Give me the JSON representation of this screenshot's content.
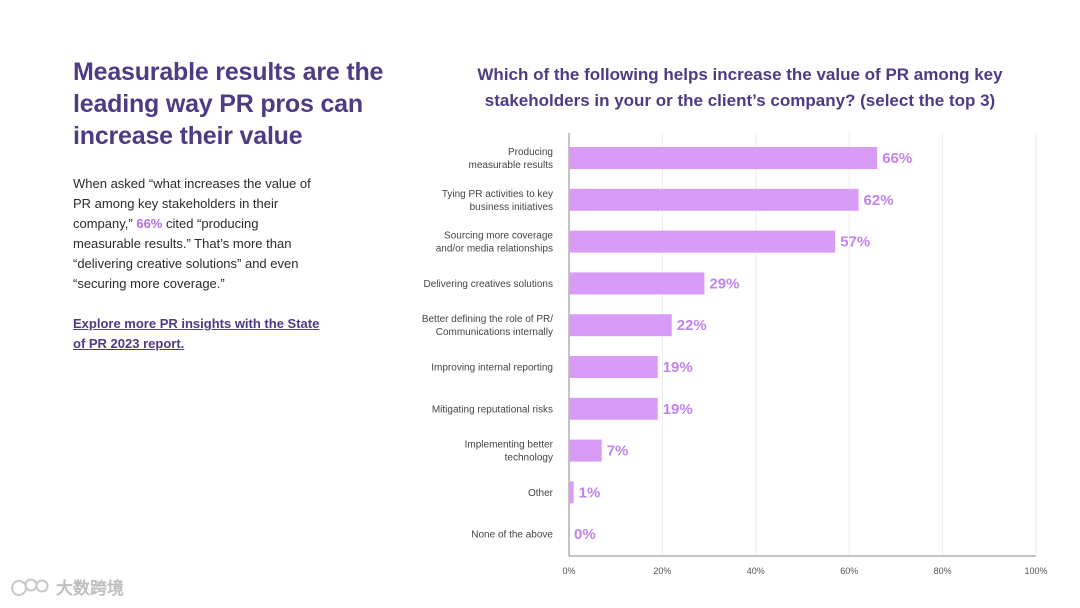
{
  "left": {
    "headline": "Measurable results are the leading way PR pros can increase their value",
    "body_before": "When asked “what increases the value of PR among key stakeholders in their company,” ",
    "body_highlight": "66%",
    "body_after": " cited “producing measurable results.” That’s more than “delivering creative solutions” and even “securing more coverage.”",
    "link_text": "Explore more PR insights with the State of PR 2023 report."
  },
  "watermark": {
    "text": "大数跨境"
  },
  "chart_data": {
    "type": "bar",
    "orientation": "horizontal",
    "title": "Which of the following helps increase the value of PR among key stakeholders in your or the client’s company? (select the top 3)",
    "categories": [
      [
        "Producing",
        "measurable results"
      ],
      [
        "Tying PR activities to key",
        "business initiatives"
      ],
      [
        "Sourcing more coverage",
        "and/or media relationships"
      ],
      [
        "Delivering creatives solutions"
      ],
      [
        "Better defining the role of PR/",
        "Communications internally"
      ],
      [
        "Improving internal reporting"
      ],
      [
        "Mitigating reputational risks"
      ],
      [
        "Implementing better",
        "technology"
      ],
      [
        "Other"
      ],
      [
        "None of the above"
      ]
    ],
    "values": [
      66,
      62,
      57,
      29,
      22,
      19,
      19,
      7,
      1,
      0
    ],
    "value_labels": [
      "66%",
      "62%",
      "57%",
      "29%",
      "22%",
      "19%",
      "19%",
      "7%",
      "1%",
      "0%"
    ],
    "xlim": [
      0,
      100
    ],
    "ticks": [
      0,
      20,
      40,
      60,
      80,
      100
    ],
    "tick_labels": [
      "0%",
      "20%",
      "40%",
      "60%",
      "80%",
      "100%"
    ],
    "grid": true,
    "bar_color": "#d89cf6",
    "label_color": "#c184ee"
  }
}
